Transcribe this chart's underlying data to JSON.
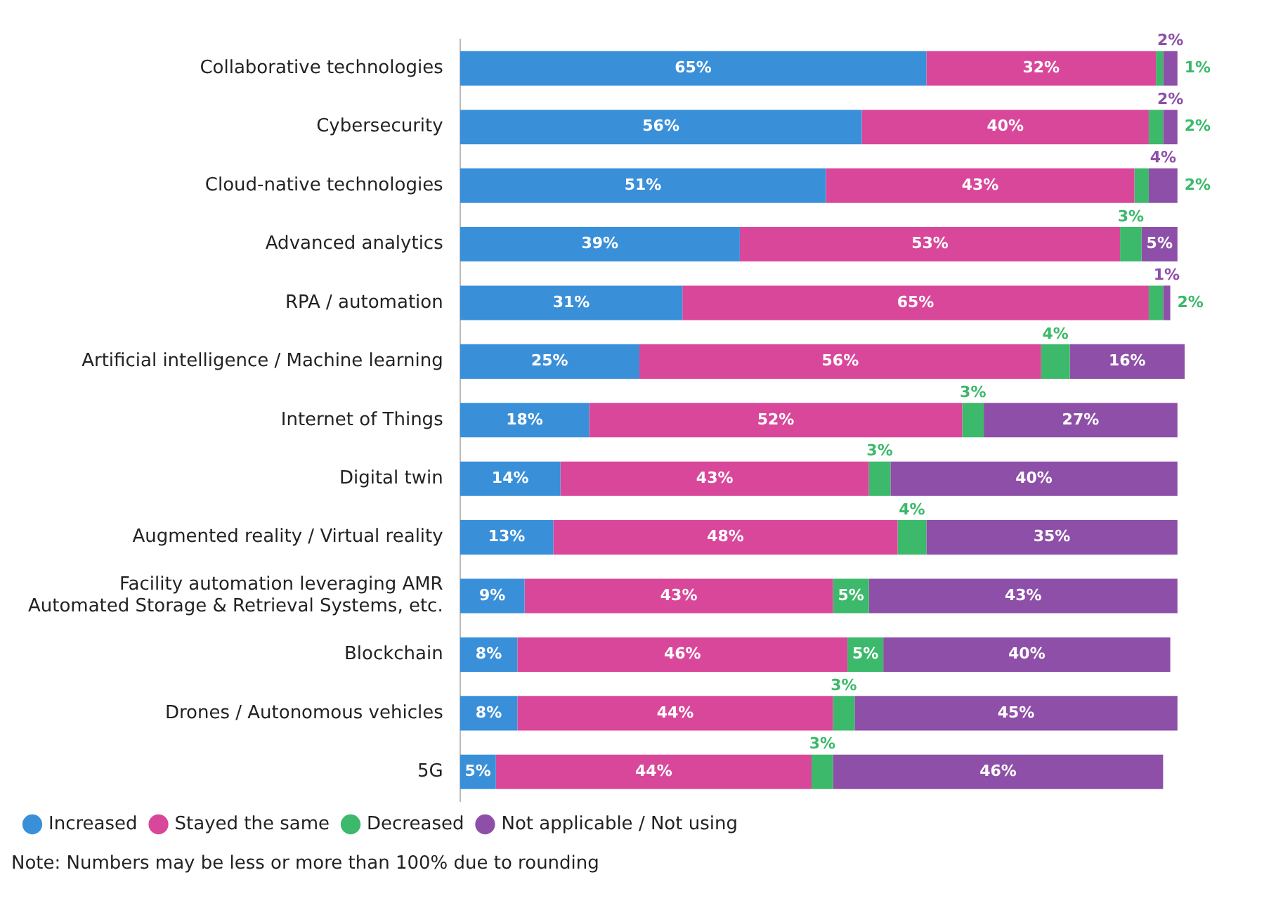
{
  "chart_data": {
    "type": "bar",
    "orientation": "horizontal",
    "stacked": true,
    "grid": false,
    "legend": "bottom left",
    "categories": [
      "Collaborative technologies",
      "Cybersecurity",
      "Cloud-native technologies",
      "Advanced analytics",
      "RPA / automation",
      "Artificial intelligence / Machine learning",
      "Internet of Things",
      "Digital twin",
      "Augmented reality / Virtual reality",
      "Facility automation leveraging AMR\nAutomated Storage & Retrieval Systems, etc.",
      "Blockchain",
      "Drones / Autonomous vehicles",
      "5G"
    ],
    "series": [
      {
        "name": "Increased",
        "color": "#3a8fd9",
        "values": [
          65,
          56,
          51,
          39,
          31,
          25,
          18,
          14,
          13,
          9,
          8,
          8,
          5
        ],
        "value_labels": [
          "65%",
          "56%",
          "51%",
          "39%",
          "31%",
          "25%",
          "18%",
          "14%",
          "13%",
          "9%",
          "8%",
          "8%",
          "5%"
        ]
      },
      {
        "name": "Stayed the same",
        "color": "#d9479a",
        "values": [
          32,
          40,
          43,
          53,
          65,
          56,
          52,
          43,
          48,
          43,
          46,
          44,
          44
        ],
        "value_labels": [
          "32%",
          "40%",
          "43%",
          "53%",
          "65%",
          "56%",
          "52%",
          "43%",
          "48%",
          "43%",
          "46%",
          "44%",
          "44%"
        ]
      },
      {
        "name": "Decreased",
        "color": "#3cb96a",
        "values": [
          1,
          2,
          2,
          3,
          2,
          4,
          3,
          3,
          4,
          5,
          5,
          3,
          3
        ],
        "value_labels": [
          "1%",
          "2%",
          "2%",
          "3%",
          "2%",
          "4%",
          "3%",
          "3%",
          "4%",
          "5%",
          "5%",
          "3%",
          "3%"
        ]
      },
      {
        "name": "Not applicable / Not using",
        "color": "#8e4fa8",
        "values": [
          2,
          2,
          4,
          5,
          1,
          16,
          27,
          40,
          35,
          43,
          40,
          45,
          46
        ],
        "value_labels": [
          "2%",
          "2%",
          "4%",
          "5%",
          "1%",
          "16%",
          "27%",
          "40%",
          "35%",
          "43%",
          "40%",
          "45%",
          "46%"
        ]
      }
    ],
    "annotations": [
      "Note: Numbers may be less or more than 100% due to rounding"
    ]
  }
}
